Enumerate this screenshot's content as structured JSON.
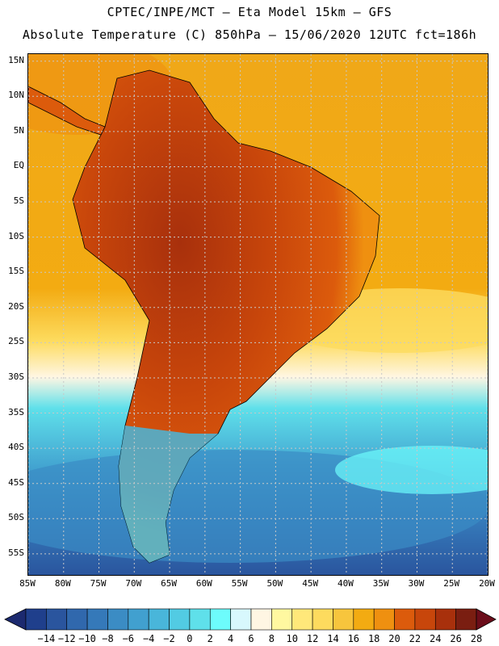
{
  "header": {
    "line1": "CPTEC/INPE/MCT –  Eta Model 15km – GFS",
    "line2": "Absolute Temperature (C) 850hPa – 15/06/2020 12UTC fct=186h"
  },
  "map": {
    "lat_labels": [
      "15N",
      "10N",
      "5N",
      "EQ",
      "5S",
      "10S",
      "15S",
      "20S",
      "25S",
      "30S",
      "35S",
      "40S",
      "45S",
      "50S",
      "55S"
    ],
    "lon_labels": [
      "85W",
      "80W",
      "75W",
      "70W",
      "65W",
      "60W",
      "55W",
      "50W",
      "45W",
      "40W",
      "35W",
      "30W",
      "25W",
      "20W"
    ],
    "lon_range": [
      -85,
      -20
    ],
    "lat_range": [
      -58,
      16
    ]
  },
  "colorbar": {
    "labels": [
      "-14",
      "-12",
      "-10",
      "-8",
      "-6",
      "-4",
      "-2",
      "0",
      "2",
      "4",
      "6",
      "8",
      "10",
      "12",
      "14",
      "16",
      "18",
      "20",
      "22",
      "24",
      "26",
      "28"
    ],
    "colors": [
      "#1f3f8c",
      "#2a559e",
      "#3068ad",
      "#3579b9",
      "#3b8cc4",
      "#41a0cf",
      "#49b6da",
      "#52cbe3",
      "#5fe0ea",
      "#6dfcfc",
      "#d8f8fd",
      "#fff6e3",
      "#fff8a0",
      "#ffe87a",
      "#fddb5e",
      "#f7c53d",
      "#f3ab12",
      "#ef9010",
      "#dc5b0c",
      "#c8460b",
      "#a8300c",
      "#7a1e11"
    ],
    "left_arrow_color": "#1c2a6f",
    "right_arrow_color": "#6b0d1a"
  },
  "palette": {
    "ocean_north": "#f3ab12",
    "ocean_mid": "#ffe87a",
    "ocean_cold": "#52cbe3",
    "ocean_deep": "#3579b9",
    "land_hot": "#a8300c",
    "land_warm": "#dc5b0c",
    "coast": "#000000",
    "grid": "#c8c8c8"
  }
}
